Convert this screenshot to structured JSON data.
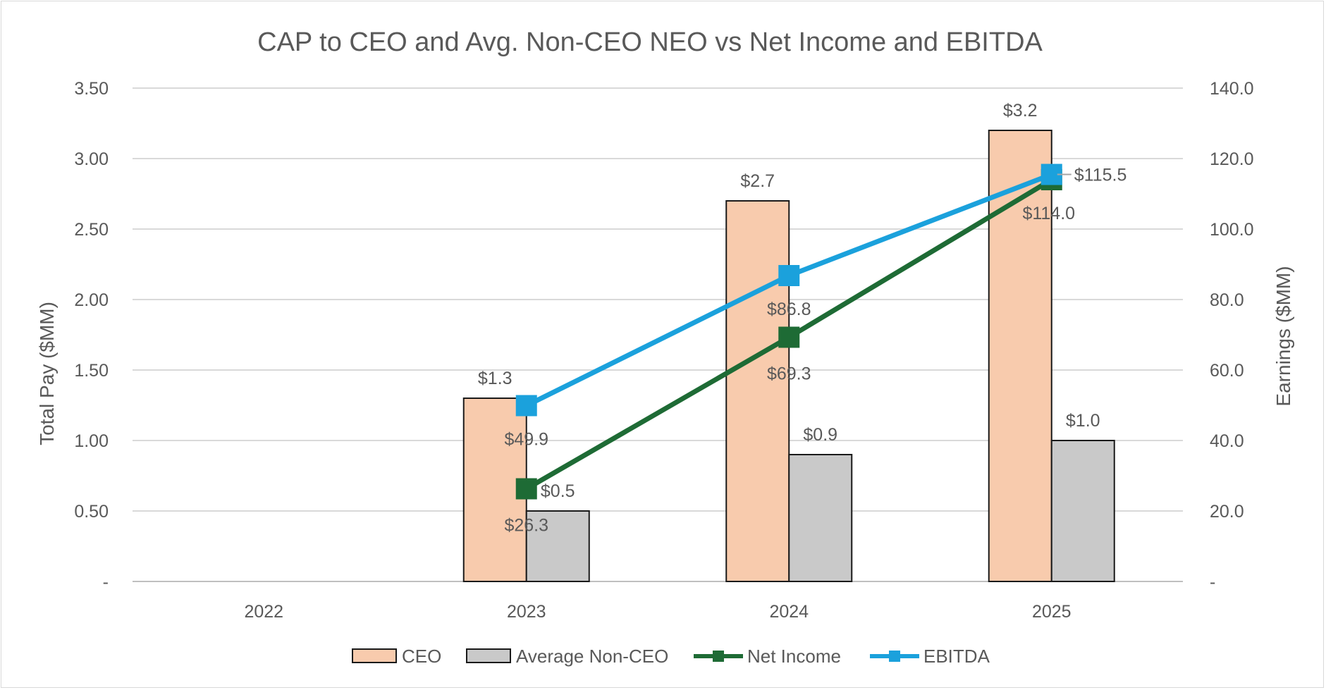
{
  "chart_data": {
    "type": "bar",
    "title": "CAP to CEO and Avg. Non-CEO NEO vs Net Income and EBITDA",
    "categories": [
      "2022",
      "2023",
      "2024",
      "2025"
    ],
    "y_left": {
      "label": "Total Pay ($MM)",
      "range": [
        0,
        3.5
      ],
      "ticks": [
        0,
        0.5,
        1.0,
        1.5,
        2.0,
        2.5,
        3.0,
        3.5
      ],
      "tick_labels": [
        "-",
        "0.50",
        "1.00",
        "1.50",
        "2.00",
        "2.50",
        "3.00",
        "3.50"
      ]
    },
    "y_right": {
      "label": "Earnings ($MM)",
      "range": [
        0,
        140
      ],
      "ticks": [
        0,
        20,
        40,
        60,
        80,
        100,
        120,
        140
      ],
      "tick_labels": [
        "-",
        "20.0",
        "40.0",
        "60.0",
        "80.0",
        "100.0",
        "120.0",
        "140.0"
      ]
    },
    "series": [
      {
        "name": "CEO",
        "kind": "bar",
        "axis": "left",
        "color": "#f8cbad",
        "values": [
          null,
          1.3,
          2.7,
          3.2
        ],
        "labels": [
          "",
          "$1.3",
          "$2.7",
          "$3.2"
        ]
      },
      {
        "name": "Average Non-CEO",
        "kind": "bar",
        "axis": "left",
        "color": "#c9c9c9",
        "values": [
          null,
          0.5,
          0.9,
          1.0
        ],
        "labels": [
          "",
          "$0.5",
          "$0.9",
          "$1.0"
        ]
      },
      {
        "name": "Net Income",
        "kind": "line",
        "axis": "right",
        "color": "#1e6b35",
        "values": [
          null,
          26.3,
          69.3,
          114.0
        ],
        "labels": [
          "",
          "$26.3",
          "$69.3",
          "$114.0"
        ]
      },
      {
        "name": "EBITDA",
        "kind": "line",
        "axis": "right",
        "color": "#1ba1dc",
        "values": [
          null,
          49.9,
          86.8,
          115.5
        ],
        "labels": [
          "",
          "$49.9",
          "$86.8",
          "$115.5"
        ]
      }
    ],
    "grid": true,
    "legend_position": "bottom"
  }
}
